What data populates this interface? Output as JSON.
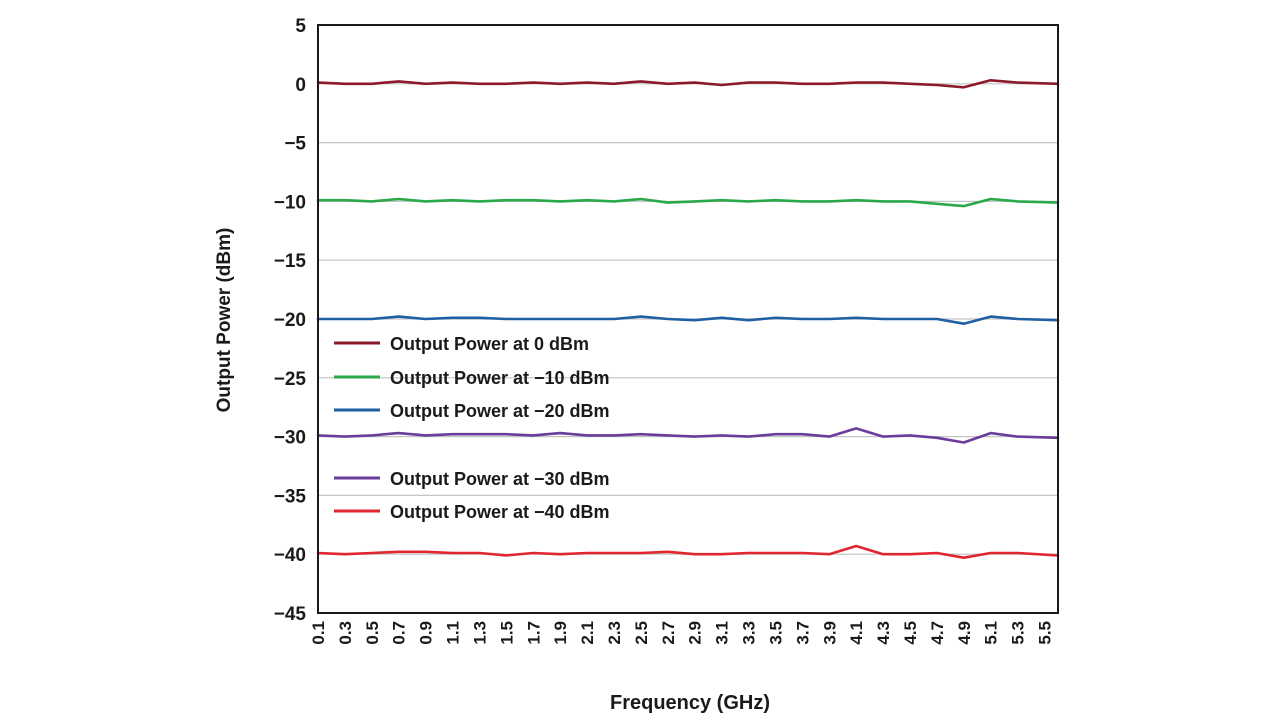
{
  "chart_data": {
    "type": "line",
    "xlabel": "Frequency (GHz)",
    "ylabel": "Output Power (dBm)",
    "ylim": [
      -45,
      5
    ],
    "yticks": [
      5,
      0,
      -5,
      -10,
      -15,
      -20,
      -25,
      -30,
      -35,
      -40,
      -45
    ],
    "ytick_labels": [
      "5",
      "0",
      "−5",
      "−10",
      "−15",
      "−20",
      "−25",
      "−30",
      "−35",
      "−40",
      "−45"
    ],
    "xlim": [
      0.1,
      5.6
    ],
    "xticks": [
      0.1,
      0.3,
      0.5,
      0.7,
      0.9,
      1.1,
      1.3,
      1.5,
      1.7,
      1.9,
      2.1,
      2.3,
      2.5,
      2.7,
      2.9,
      3.1,
      3.3,
      3.5,
      3.7,
      3.9,
      4.1,
      4.3,
      4.5,
      4.7,
      4.9,
      5.1,
      5.3,
      5.5
    ],
    "xtick_labels": [
      "0.1",
      "0.3",
      "0.5",
      "0.7",
      "0.9",
      "1.1",
      "1.3",
      "1.5",
      "1.7",
      "1.9",
      "2.1",
      "2.3",
      "2.5",
      "2.7",
      "2.9",
      "3.1",
      "3.3",
      "3.5",
      "3.7",
      "3.9",
      "4.1",
      "4.3",
      "4.5",
      "4.7",
      "4.9",
      "5.1",
      "5.3",
      "5.5"
    ],
    "grid": "horizontal",
    "legend_position": "lower-left",
    "x": [
      0.1,
      0.3,
      0.5,
      0.7,
      0.9,
      1.1,
      1.3,
      1.5,
      1.7,
      1.9,
      2.1,
      2.3,
      2.5,
      2.7,
      2.9,
      3.1,
      3.3,
      3.5,
      3.7,
      3.9,
      4.1,
      4.3,
      4.5,
      4.7,
      4.9,
      5.1,
      5.3,
      5.6
    ],
    "series": [
      {
        "name": "Output Power at 0 dBm",
        "color": "#8b1a2b",
        "values": [
          0.1,
          0.0,
          0.0,
          0.2,
          0.0,
          0.1,
          0.0,
          0.0,
          0.1,
          0.0,
          0.1,
          0.0,
          0.2,
          0.0,
          0.1,
          -0.1,
          0.1,
          0.1,
          0.0,
          0.0,
          0.1,
          0.1,
          0.0,
          -0.1,
          -0.3,
          0.3,
          0.1,
          0.0
        ]
      },
      {
        "name": "Output Power at −10 dBm",
        "color": "#2aa84a",
        "values": [
          -9.9,
          -9.9,
          -10.0,
          -9.8,
          -10.0,
          -9.9,
          -10.0,
          -9.9,
          -9.9,
          -10.0,
          -9.9,
          -10.0,
          -9.8,
          -10.1,
          -10.0,
          -9.9,
          -10.0,
          -9.9,
          -10.0,
          -10.0,
          -9.9,
          -10.0,
          -10.0,
          -10.2,
          -10.4,
          -9.8,
          -10.0,
          -10.1
        ]
      },
      {
        "name": "Output Power at −20 dBm",
        "color": "#1f5fa3",
        "values": [
          -20.0,
          -20.0,
          -20.0,
          -19.8,
          -20.0,
          -19.9,
          -19.9,
          -20.0,
          -20.0,
          -20.0,
          -20.0,
          -20.0,
          -19.8,
          -20.0,
          -20.1,
          -19.9,
          -20.1,
          -19.9,
          -20.0,
          -20.0,
          -19.9,
          -20.0,
          -20.0,
          -20.0,
          -20.4,
          -19.8,
          -20.0,
          -20.1
        ]
      },
      {
        "name": "Output Power at −30 dBm",
        "color": "#6a3d9a",
        "values": [
          -29.9,
          -30.0,
          -29.9,
          -29.7,
          -29.9,
          -29.8,
          -29.8,
          -29.8,
          -29.9,
          -29.7,
          -29.9,
          -29.9,
          -29.8,
          -29.9,
          -30.0,
          -29.9,
          -30.0,
          -29.8,
          -29.8,
          -30.0,
          -29.3,
          -30.0,
          -29.9,
          -30.1,
          -30.5,
          -29.7,
          -30.0,
          -30.1
        ]
      },
      {
        "name": "Output Power at −40 dBm",
        "color": "#e0262e",
        "values": [
          -39.9,
          -40.0,
          -39.9,
          -39.8,
          -39.8,
          -39.9,
          -39.9,
          -40.1,
          -39.9,
          -40.0,
          -39.9,
          -39.9,
          -39.9,
          -39.8,
          -40.0,
          -40.0,
          -39.9,
          -39.9,
          -39.9,
          -40.0,
          -39.3,
          -40.0,
          -40.0,
          -39.9,
          -40.3,
          -39.9,
          -39.9,
          -40.1
        ]
      }
    ]
  }
}
